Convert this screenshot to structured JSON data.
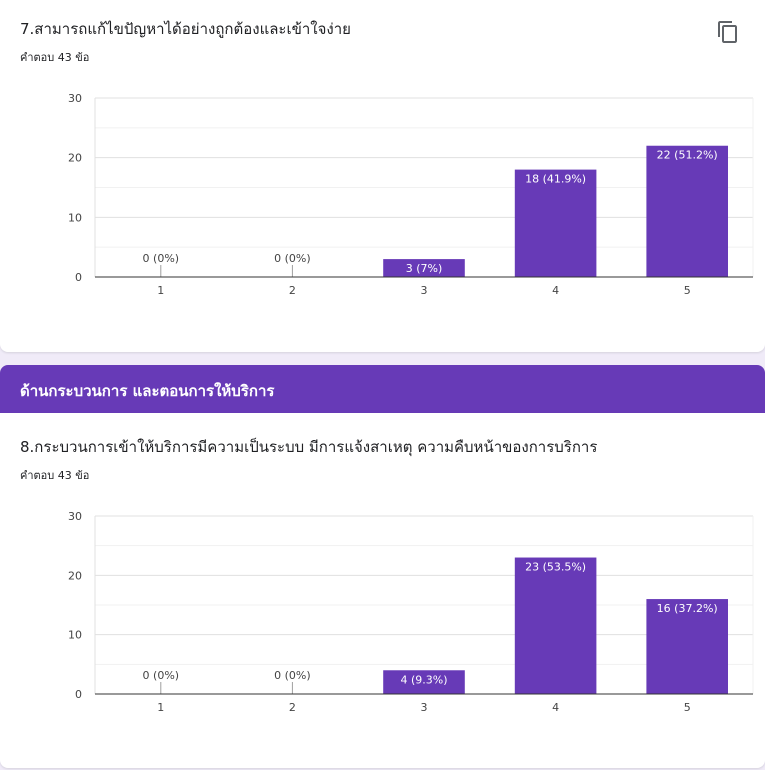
{
  "questions": [
    {
      "title": "7.สามารถแก้ไขปัญหาได้อย่างถูกต้องและเข้าใจง่าย",
      "response_count": "คำตอบ 43 ข้อ",
      "copy_icon": "copy-icon"
    },
    {
      "title": "8.กระบวนการเข้าให้บริการมีความเป็นระบบ มีการแจ้งสาเหตุ ความคืบหน้าของการบริการ",
      "response_count": "คำตอบ 43 ข้อ"
    }
  ],
  "section": {
    "title": "ด้านกระบวนการ และตอนการให้บริการ"
  },
  "colors": {
    "accent": "#673ab7",
    "bar": "#673ab7",
    "background": "#f0ebf8"
  },
  "chart_data": [
    {
      "type": "bar",
      "categories": [
        "1",
        "2",
        "3",
        "4",
        "5"
      ],
      "values": [
        0,
        0,
        3,
        18,
        22
      ],
      "data_labels": [
        "0 (0%)",
        "0 (0%)",
        "3 (7%)",
        "18 (41.9%)",
        "22 (51.2%)"
      ],
      "yticks": [
        0,
        10,
        20,
        30
      ],
      "ylim": [
        0,
        30
      ],
      "grid": true
    },
    {
      "type": "bar",
      "categories": [
        "1",
        "2",
        "3",
        "4",
        "5"
      ],
      "values": [
        0,
        0,
        4,
        23,
        16
      ],
      "data_labels": [
        "0 (0%)",
        "0 (0%)",
        "4 (9.3%)",
        "23 (53.5%)",
        "16 (37.2%)"
      ],
      "yticks": [
        0,
        10,
        20,
        30
      ],
      "ylim": [
        0,
        30
      ],
      "grid": true
    }
  ]
}
